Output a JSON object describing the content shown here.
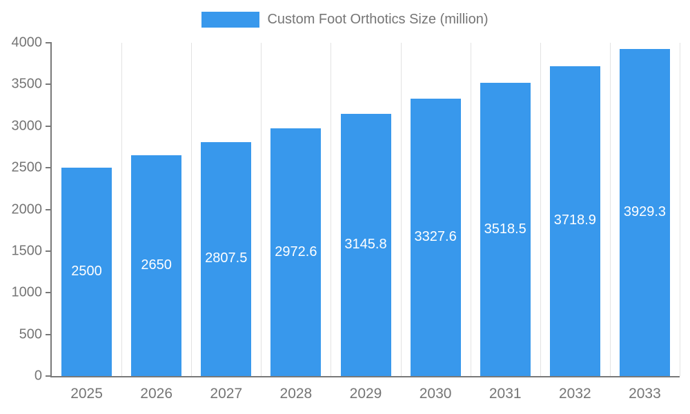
{
  "legend": {
    "label": "Custom Foot Orthotics Size (million)"
  },
  "colors": {
    "bar": "#3898ec",
    "axis_text": "#757575",
    "bar_label_text": "#ffffff",
    "gridline": "#e2e2e2",
    "axis_line": "#787878",
    "background": "#ffffff"
  },
  "chart_data": {
    "type": "bar",
    "title": "Custom Foot Orthotics Size (million)",
    "categories": [
      "2025",
      "2026",
      "2027",
      "2028",
      "2029",
      "2030",
      "2031",
      "2032",
      "2033"
    ],
    "values": [
      2500,
      2650,
      2807.5,
      2972.6,
      3145.8,
      3327.6,
      3518.5,
      3718.9,
      3929.3
    ],
    "value_labels": [
      "2500",
      "2650",
      "2807.5",
      "2972.6",
      "3145.8",
      "3327.6",
      "3518.5",
      "3718.9",
      "3929.3"
    ],
    "xlabel": "",
    "ylabel": "",
    "ylim": [
      0,
      4000
    ],
    "ytick_interval": 500,
    "ytick_labels": [
      "0",
      "500",
      "1000",
      "1500",
      "2000",
      "2500",
      "3000",
      "3500",
      "4000"
    ],
    "grid": "vertical-only",
    "legend_position": "top-center",
    "bar_label_position": "middle-of-bar"
  }
}
